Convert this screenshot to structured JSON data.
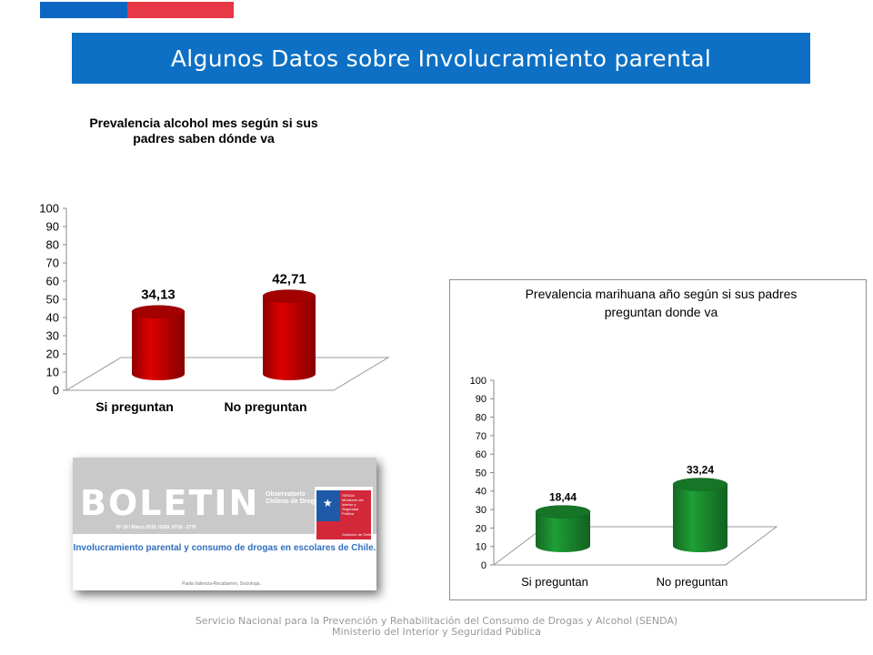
{
  "header": {
    "title": "Algunos Datos sobre Involucramiento parental",
    "flag_colors": {
      "blue": "#0d66c2",
      "red": "#e73845"
    }
  },
  "boletin": {
    "heading": "BOLETIN",
    "observatory": "Observatorio Chileno de Drogas",
    "issue": "Nº 19 / Marzo 2015. ISSN: 0719 - 2770",
    "logo_org": "SENDA Ministerio del Interior y Seguridad Pública",
    "logo_gov": "Gobierno de Chile",
    "subtitle": "Involucramiento parental y consumo de drogas en escolares de Chile.",
    "author": "Paola Valencia-Recabarren, Sociologa."
  },
  "footer": {
    "line1": "Servicio Nacional para la Prevención y Rehabilitación del Consumo de Drogas y Alcohol (SENDA)",
    "line2": "Ministerio del Interior y Seguridad Pública"
  },
  "chart_data": [
    {
      "type": "bar",
      "title": "Prevalencia alcohol  mes según si sus padres saben dónde va",
      "title_lines": [
        "Prevalencia alcohol  mes según si sus",
        "padres saben dónde va"
      ],
      "categories": [
        "Si preguntan",
        "No preguntan"
      ],
      "values": [
        34.13,
        42.71
      ],
      "data_labels": [
        "34,13",
        "42,71"
      ],
      "yticks": [
        "0",
        "10",
        "20",
        "30",
        "40",
        "50",
        "60",
        "70",
        "80",
        "90",
        "100"
      ],
      "ylim": [
        0,
        100
      ],
      "grid": false,
      "color": "#c00000"
    },
    {
      "type": "bar",
      "title": "Prevalencia marihuana año según si sus padres preguntan donde va",
      "title_lines": [
        "Prevalencia marihuana año según si sus padres",
        "preguntan donde va"
      ],
      "categories": [
        "Si preguntan",
        "No preguntan"
      ],
      "values": [
        18.44,
        33.24
      ],
      "data_labels": [
        "18,44",
        "33,24"
      ],
      "yticks": [
        "0",
        "10",
        "20",
        "30",
        "40",
        "50",
        "60",
        "70",
        "80",
        "90",
        "100"
      ],
      "ylim": [
        0,
        100
      ],
      "grid": false,
      "color": "#1a8a2e"
    }
  ]
}
